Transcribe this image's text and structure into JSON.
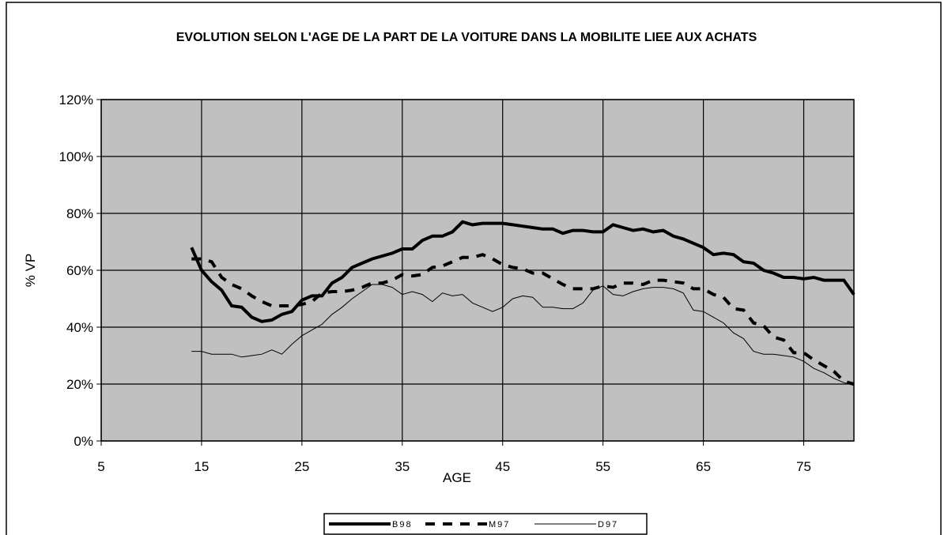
{
  "chart_data": {
    "type": "line",
    "title": "EVOLUTION SELON L'AGE DE LA PART DE LA VOITURE DANS LA MOBILITE LIEE AUX ACHATS",
    "x_label": "AGE",
    "y_label": "% VP",
    "x": [
      14,
      15,
      16,
      17,
      18,
      19,
      20,
      21,
      22,
      23,
      24,
      25,
      26,
      27,
      28,
      29,
      30,
      31,
      32,
      33,
      34,
      35,
      36,
      37,
      38,
      39,
      40,
      41,
      42,
      43,
      44,
      45,
      46,
      47,
      48,
      49,
      50,
      51,
      52,
      53,
      54,
      55,
      56,
      57,
      58,
      59,
      60,
      61,
      62,
      63,
      64,
      65,
      66,
      67,
      68,
      69,
      70,
      71,
      72,
      73,
      74,
      75,
      76,
      77,
      78,
      79,
      80
    ],
    "series": [
      {
        "name": "B98",
        "color": "#000000",
        "width": 4,
        "dash": "none",
        "values": [
          68,
          60,
          56,
          53,
          47.5,
          47,
          43.5,
          42,
          42.5,
          44.5,
          45.5,
          49.5,
          51,
          51,
          55.5,
          57.5,
          61,
          62.5,
          64,
          65,
          66,
          67.5,
          67.5,
          70.5,
          72,
          72,
          73.5,
          77,
          76,
          76.5,
          76.5,
          76.5,
          76,
          75.5,
          75,
          74.5,
          74.5,
          73,
          74,
          74,
          73.5,
          73.5,
          76,
          75,
          74,
          74.5,
          73.5,
          74,
          72,
          71,
          69.5,
          68,
          65.5,
          66,
          65.5,
          63,
          62.5,
          60,
          59,
          57.5,
          57.5,
          57,
          57.5,
          56.5,
          56.5,
          56.5,
          51.5
        ]
      },
      {
        "name": "M97",
        "color": "#000000",
        "width": 4,
        "dash": "12 10",
        "values": [
          64,
          64,
          63,
          57.5,
          55,
          53.5,
          51,
          49,
          47.5,
          47.5,
          47.5,
          48,
          49,
          52,
          52.5,
          52.5,
          53,
          54,
          55.5,
          55.5,
          56.5,
          58.5,
          58,
          58.5,
          61,
          61.5,
          63,
          64.5,
          64.5,
          65.5,
          64,
          62,
          61,
          60.5,
          59,
          59,
          57,
          55,
          53.5,
          53.5,
          53.5,
          54.5,
          54,
          55.5,
          55.5,
          55,
          56.5,
          56.5,
          56,
          55.5,
          53.5,
          53.5,
          51.5,
          50.5,
          46.5,
          46,
          41.5,
          40.5,
          36.5,
          35.5,
          31,
          31,
          28.5,
          26.5,
          24.5,
          21,
          20
        ]
      },
      {
        "name": "D97",
        "color": "#000000",
        "width": 1,
        "dash": "none",
        "values": [
          31.5,
          31.5,
          30.5,
          30.5,
          30.5,
          29.5,
          30,
          30.5,
          32,
          30.5,
          34,
          37,
          39,
          41,
          44.5,
          47,
          50,
          52.5,
          55,
          55,
          54,
          51.5,
          52.5,
          51.5,
          49,
          52,
          51,
          51.5,
          48.5,
          47,
          45.5,
          47,
          50,
          51,
          50.5,
          47,
          47,
          46.5,
          46.5,
          48.5,
          53,
          54.5,
          51.5,
          51,
          52.5,
          53.5,
          54,
          54,
          53.5,
          52,
          46,
          45.5,
          43.5,
          41.5,
          38,
          36,
          31.5,
          30.5,
          30.5,
          30,
          29.5,
          28,
          25.5,
          24,
          22,
          20.5,
          19.5
        ]
      }
    ],
    "xlim": [
      5,
      80
    ],
    "xticks": [
      5,
      15,
      25,
      35,
      45,
      55,
      65,
      75
    ],
    "ylim": [
      0,
      120
    ],
    "yticks": [
      {
        "value": 0,
        "label": "0%"
      },
      {
        "value": 20,
        "label": "20%"
      },
      {
        "value": 40,
        "label": "40%"
      },
      {
        "value": 60,
        "label": "60%"
      },
      {
        "value": 80,
        "label": "80%"
      },
      {
        "value": 100,
        "label": "100%"
      },
      {
        "value": 120,
        "label": "120%"
      }
    ],
    "grid": true,
    "plot_background": "#c0c0c0",
    "legend": "bottom"
  }
}
